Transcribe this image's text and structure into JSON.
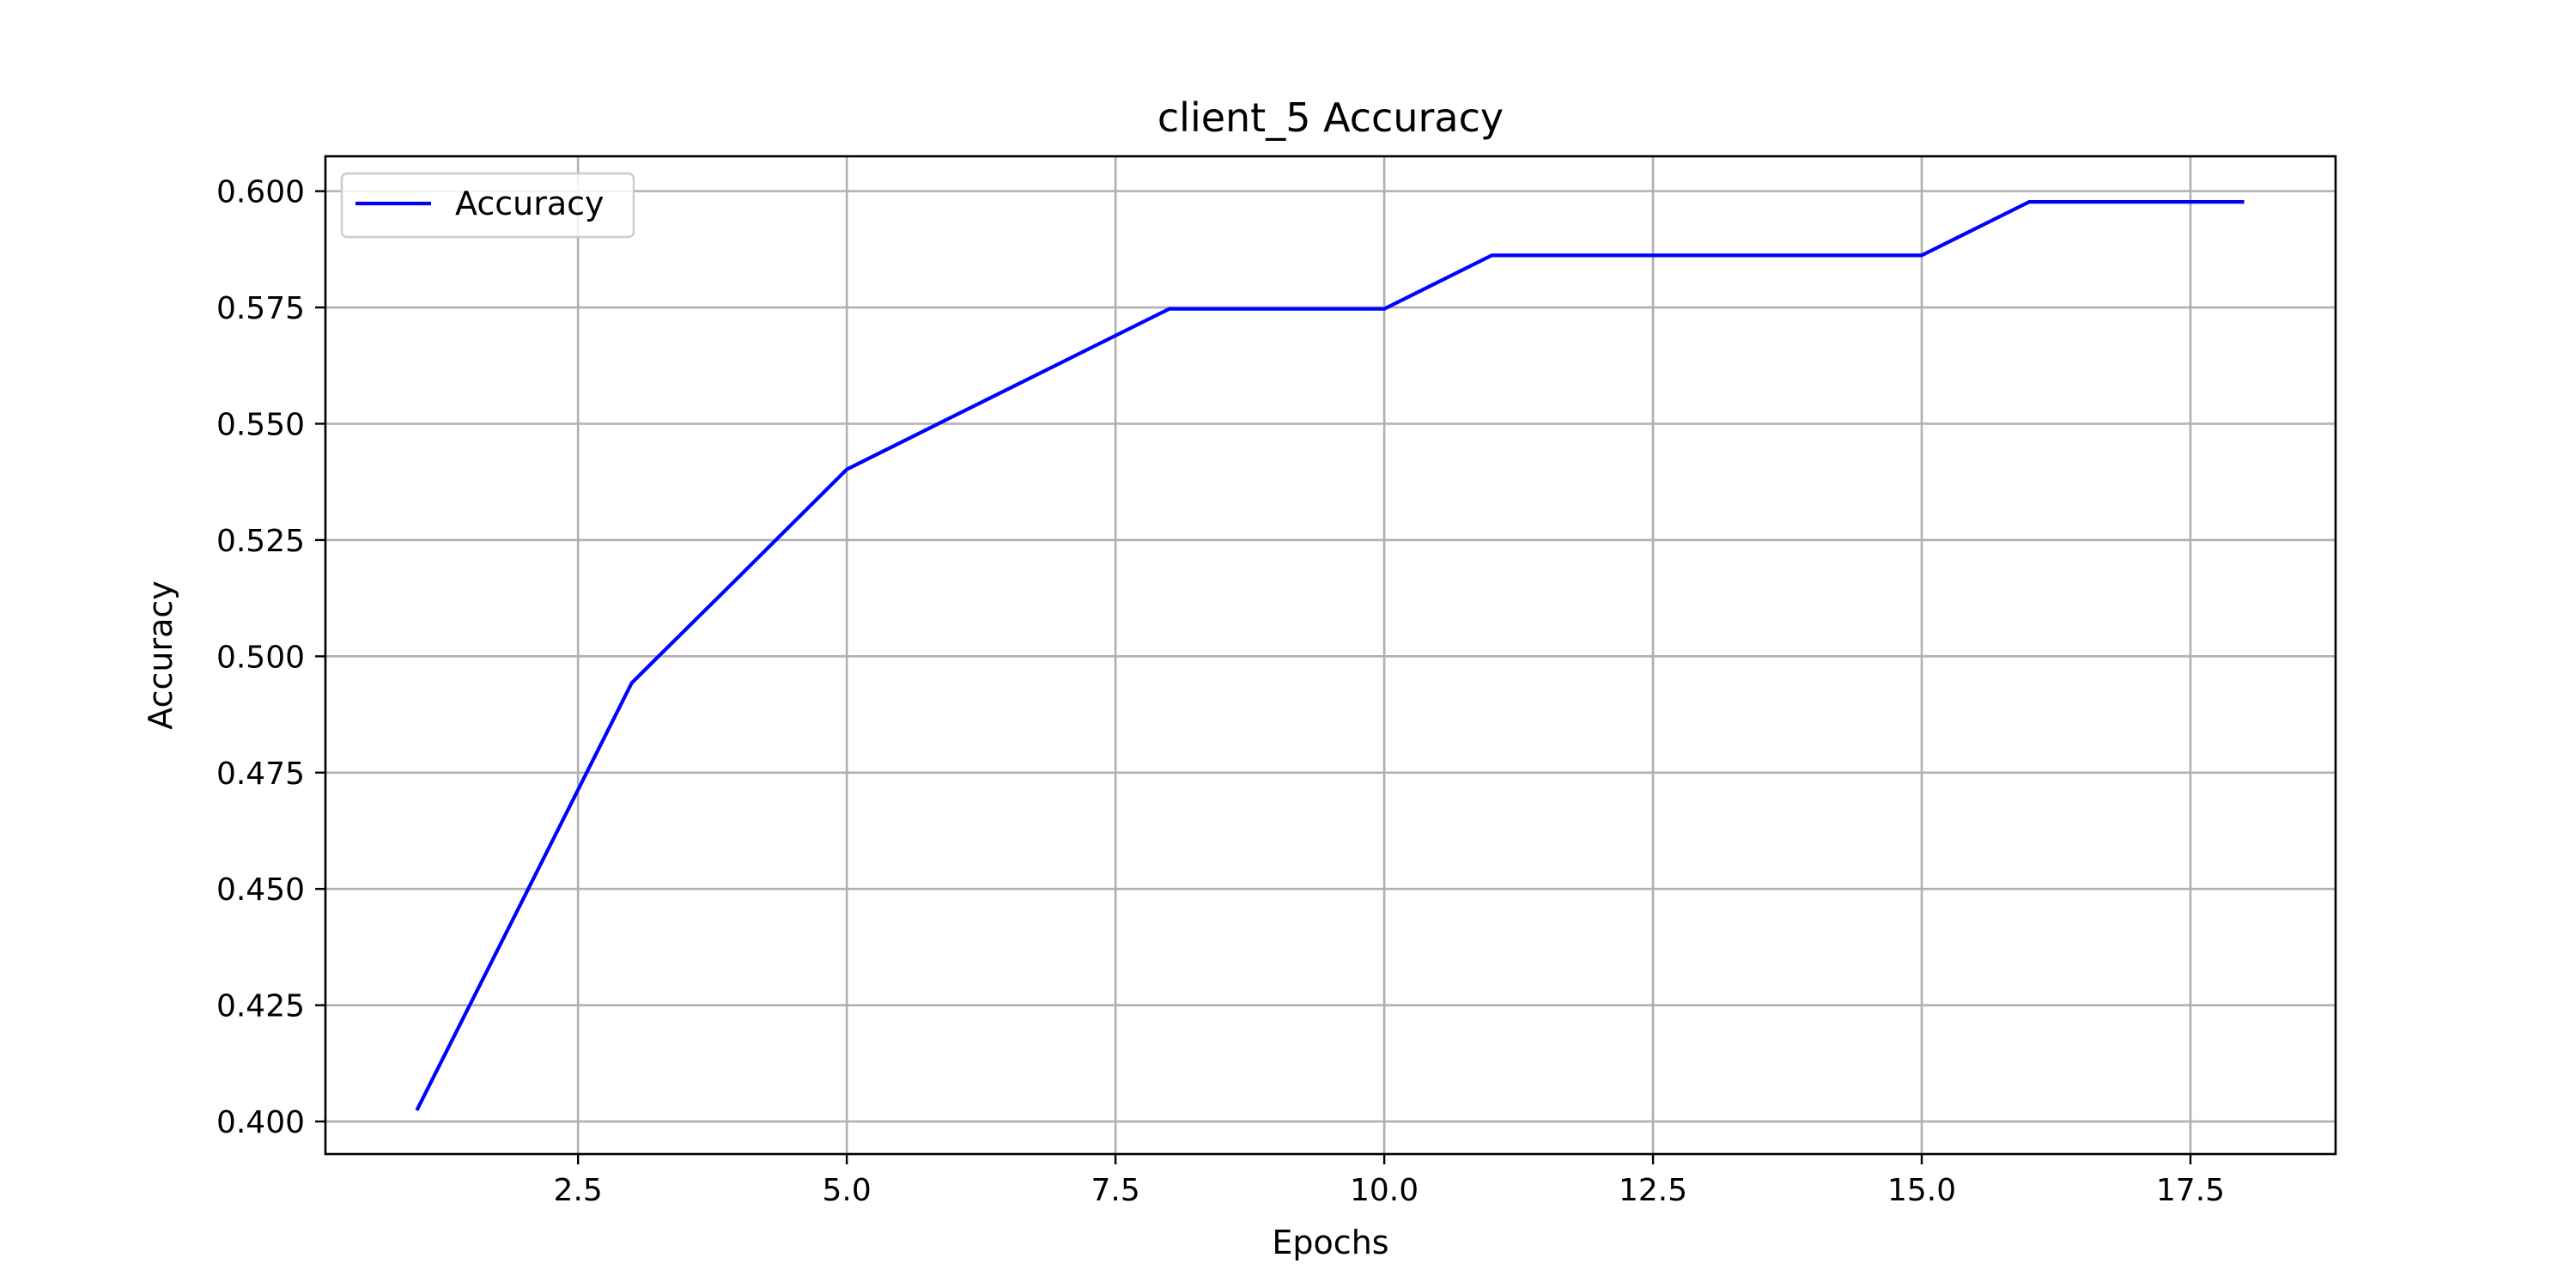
{
  "chart_data": {
    "type": "line",
    "title": "client_5 Accuracy",
    "xlabel": "Epochs",
    "ylabel": "Accuracy",
    "xlim": [
      0.15,
      18.85
    ],
    "ylim": [
      0.393,
      0.6075
    ],
    "xticks": [
      2.5,
      5.0,
      7.5,
      10.0,
      12.5,
      15.0,
      17.5
    ],
    "xtick_labels": [
      "2.5",
      "5.0",
      "7.5",
      "10.0",
      "12.5",
      "15.0",
      "17.5"
    ],
    "yticks": [
      0.4,
      0.425,
      0.45,
      0.475,
      0.5,
      0.525,
      0.55,
      0.575,
      0.6
    ],
    "ytick_labels": [
      "0.400",
      "0.425",
      "0.450",
      "0.475",
      "0.500",
      "0.525",
      "0.550",
      "0.575",
      "0.600"
    ],
    "grid": true,
    "legend_position": "top-left",
    "series": [
      {
        "name": "Accuracy",
        "color": "#0000ff",
        "x": [
          1,
          2,
          3,
          4,
          5,
          6,
          7,
          8,
          9,
          10,
          11,
          12,
          13,
          14,
          15,
          16,
          17,
          18
        ],
        "y": [
          0.4024,
          0.4483,
          0.4943,
          0.5172,
          0.5402,
          0.5517,
          0.5632,
          0.5747,
          0.5747,
          0.5747,
          0.5862,
          0.5862,
          0.5862,
          0.5862,
          0.5862,
          0.5977,
          0.5977,
          0.5977
        ]
      }
    ]
  }
}
